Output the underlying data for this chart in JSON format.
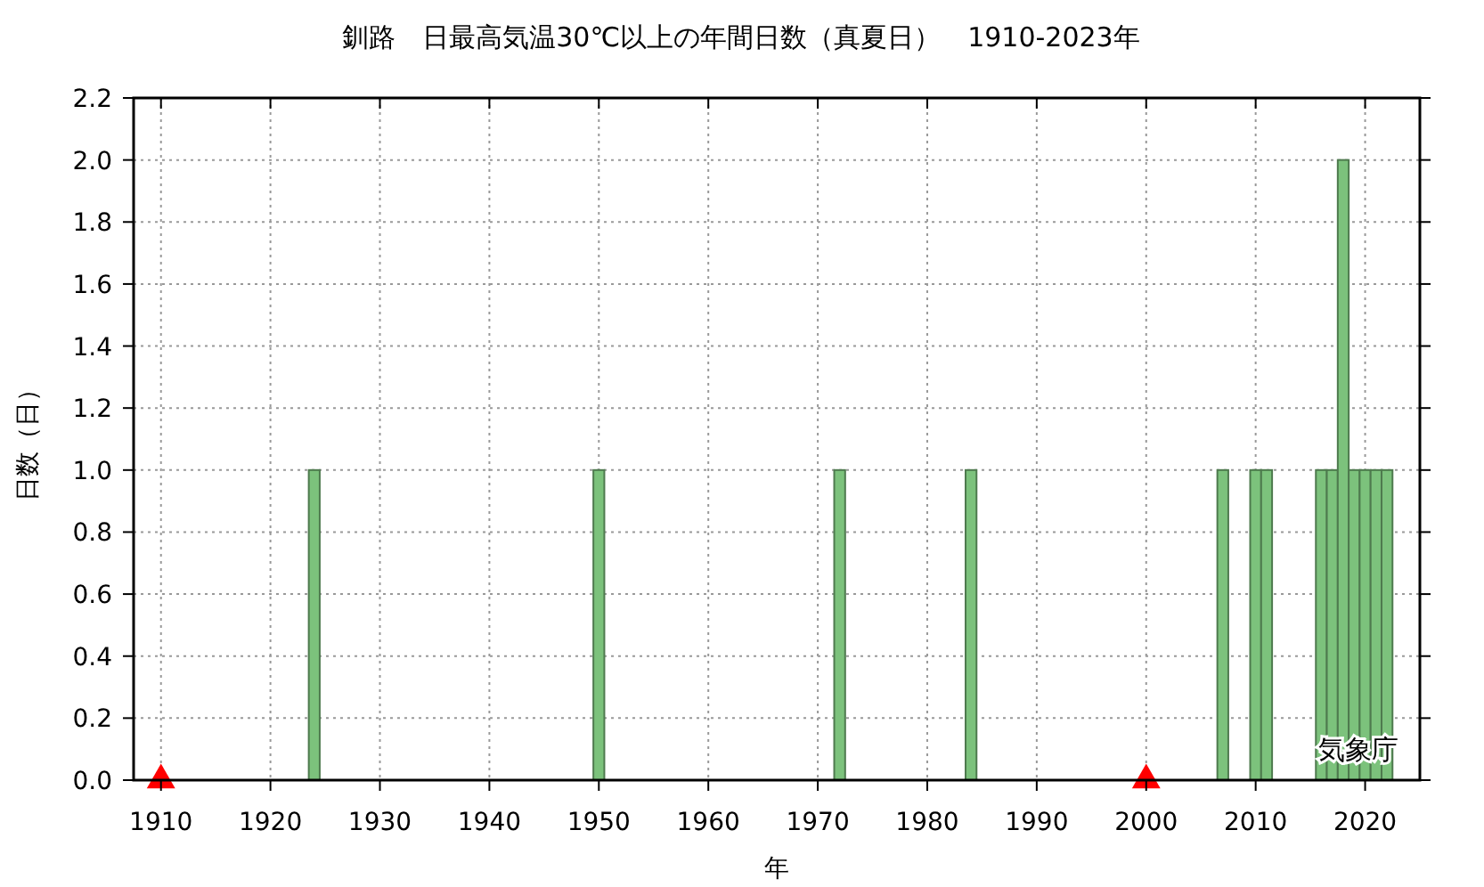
{
  "chart_data": {
    "type": "bar",
    "title": "釧路　日最高気温30℃以上の年間日数（真夏日）　1910-2023年",
    "xlabel": "年",
    "ylabel": "日数（日）",
    "x": [
      1924,
      1950,
      1972,
      1984,
      2007,
      2010,
      2011,
      2016,
      2017,
      2018,
      2019,
      2020,
      2021,
      2022
    ],
    "series": [
      {
        "color": "#7cc27c",
        "values": [
          1,
          1,
          1,
          1,
          1,
          1,
          1,
          1,
          1,
          2,
          1,
          1,
          1,
          1
        ]
      },
      {
        "type": "scatter",
        "color": "#ff0000",
        "marker": "triangle",
        "x": [
          1910,
          2000
        ],
        "values": [
          0,
          0
        ]
      }
    ],
    "xlim": [
      1907.5,
      2025
    ],
    "xticks": [
      1910,
      1920,
      1930,
      1940,
      1950,
      1960,
      1970,
      1980,
      1990,
      2000,
      2010,
      2020
    ],
    "ylim": [
      0,
      2.2
    ],
    "yticks": [
      {
        "value": 0,
        "label": "0.0"
      },
      {
        "value": 0.2,
        "label": "0.2"
      },
      {
        "value": 0.4,
        "label": "0.4"
      },
      {
        "value": 0.6,
        "label": "0.6"
      },
      {
        "value": 0.8,
        "label": "0.8"
      },
      {
        "value": 1,
        "label": "1.0"
      },
      {
        "value": 1.2,
        "label": "1.2"
      },
      {
        "value": 1.4,
        "label": "1.4"
      },
      {
        "value": 1.6,
        "label": "1.6"
      },
      {
        "value": 1.8,
        "label": "1.8"
      },
      {
        "value": 2,
        "label": "2.0"
      },
      {
        "value": 2.2,
        "label": "2.2"
      }
    ],
    "grid": true,
    "annotations": [
      "気象庁"
    ]
  }
}
